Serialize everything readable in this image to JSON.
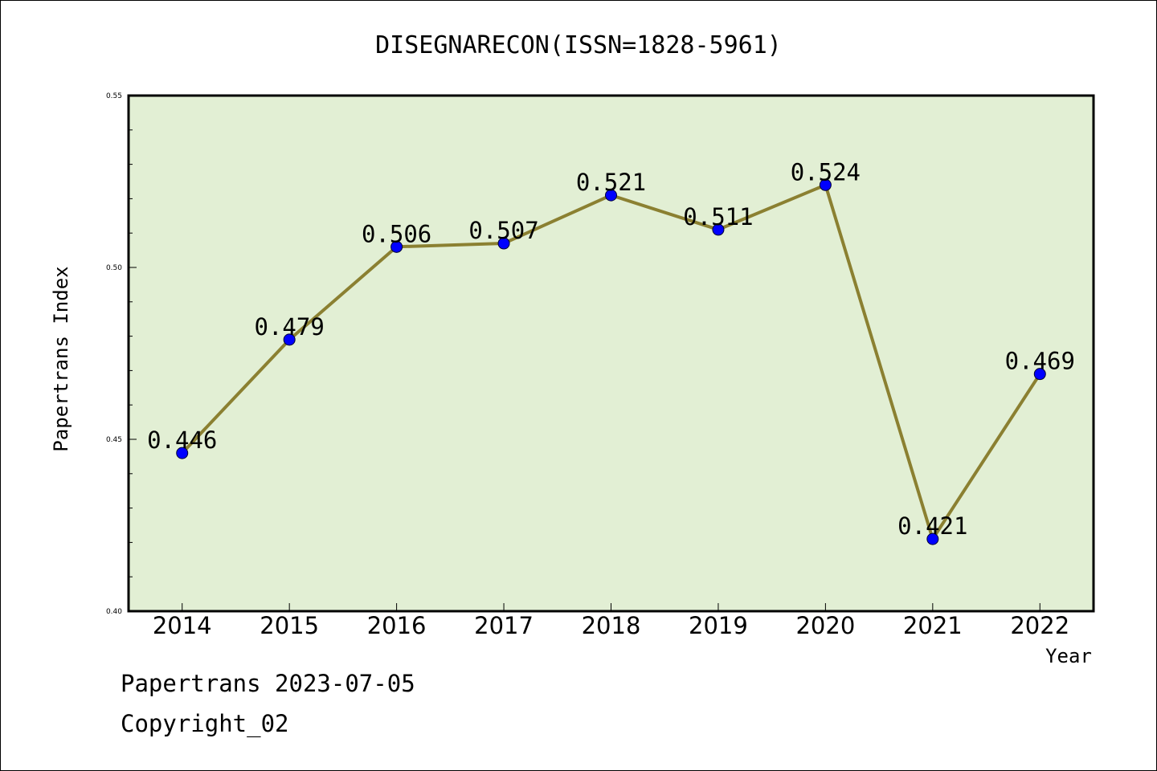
{
  "chart_data": {
    "type": "line",
    "title": "DISEGNARECON(ISSN=1828-5961)",
    "xlabel": "Year",
    "ylabel": "Papertrans Index",
    "categories": [
      "2014",
      "2015",
      "2016",
      "2017",
      "2018",
      "2019",
      "2020",
      "2021",
      "2022"
    ],
    "values": [
      0.446,
      0.479,
      0.506,
      0.507,
      0.521,
      0.511,
      0.524,
      0.421,
      0.469
    ],
    "data_labels": [
      "0.446",
      "0.479",
      "0.506",
      "0.507",
      "0.521",
      "0.511",
      "0.524",
      "0.421",
      "0.469"
    ],
    "ylim": [
      0.4,
      0.55
    ],
    "yticks": [
      "0.40",
      "0.45",
      "0.50",
      "0.55"
    ],
    "grid": false,
    "legend": "none",
    "colors": {
      "plot_background": "#e2efd4",
      "line": "#8b8031",
      "marker": "#0000ff"
    }
  },
  "footer": {
    "line1": "Papertrans 2023-07-05",
    "line2": "Copyright_02"
  }
}
